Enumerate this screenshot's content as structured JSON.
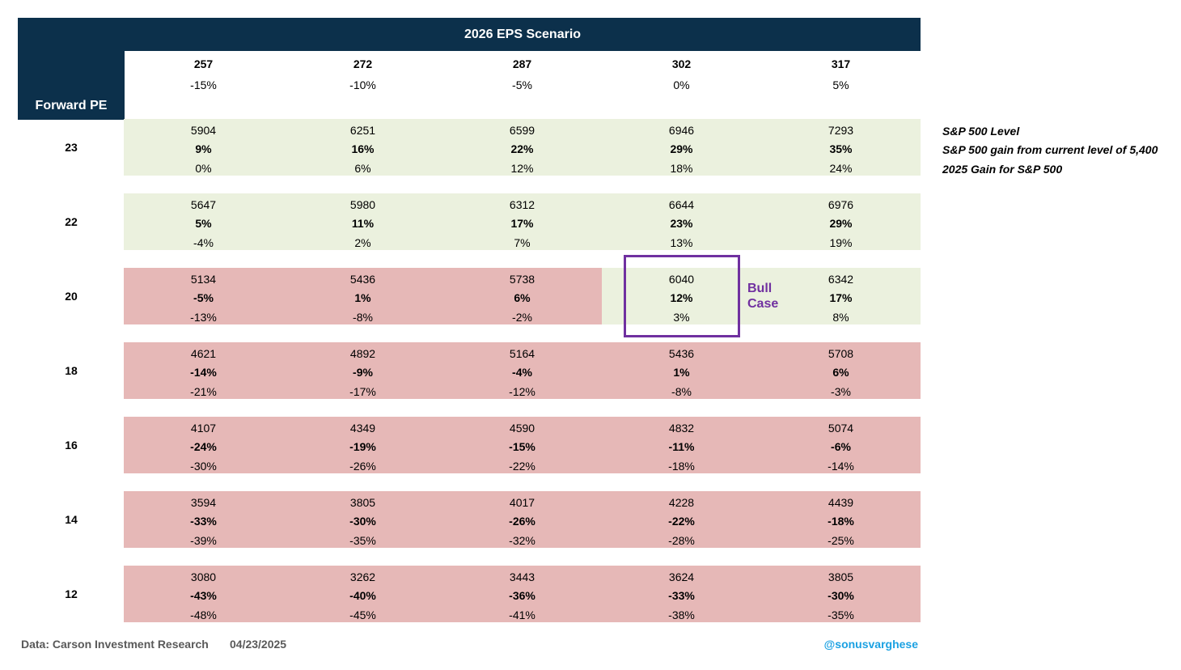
{
  "header": {
    "title": "2026 EPS Scenario",
    "row_label": "Forward PE"
  },
  "colors": {
    "header": "#0c304b",
    "positive": "#ebf1de",
    "negative": "#e6b8b7",
    "highlight": "#7030a0",
    "handle": "#1ba1e2"
  },
  "annotation": {
    "bull_line1": "Bull",
    "bull_line2": "Case"
  },
  "legend": {
    "line1": "S&P 500 Level",
    "line2": "S&P 500 gain from current level of 5,400",
    "line3": "2025 Gain for S&P 500"
  },
  "footer": {
    "source": "Data: Carson Investment Research",
    "date": "04/23/2025",
    "handle": "@sonusvarghese"
  },
  "chart_data": {
    "type": "table",
    "title": "2026 EPS Scenario",
    "ylabel": "Forward PE",
    "eps": [
      {
        "value": "257",
        "change": "-15%"
      },
      {
        "value": "272",
        "change": "-10%"
      },
      {
        "value": "287",
        "change": "-5%"
      },
      {
        "value": "302",
        "change": "0%"
      },
      {
        "value": "317",
        "change": "5%"
      }
    ],
    "rows": [
      {
        "pe": "23",
        "cells": [
          {
            "level": "5904",
            "gain": "9%",
            "gain_2025": "0%",
            "positive": true
          },
          {
            "level": "6251",
            "gain": "16%",
            "gain_2025": "6%",
            "positive": true
          },
          {
            "level": "6599",
            "gain": "22%",
            "gain_2025": "12%",
            "positive": true
          },
          {
            "level": "6946",
            "gain": "29%",
            "gain_2025": "18%",
            "positive": true
          },
          {
            "level": "7293",
            "gain": "35%",
            "gain_2025": "24%",
            "positive": true
          }
        ]
      },
      {
        "pe": "22",
        "cells": [
          {
            "level": "5647",
            "gain": "5%",
            "gain_2025": "-4%",
            "positive": true
          },
          {
            "level": "5980",
            "gain": "11%",
            "gain_2025": "2%",
            "positive": true
          },
          {
            "level": "6312",
            "gain": "17%",
            "gain_2025": "7%",
            "positive": true
          },
          {
            "level": "6644",
            "gain": "23%",
            "gain_2025": "13%",
            "positive": true
          },
          {
            "level": "6976",
            "gain": "29%",
            "gain_2025": "19%",
            "positive": true
          }
        ]
      },
      {
        "pe": "20",
        "cells": [
          {
            "level": "5134",
            "gain": "-5%",
            "gain_2025": "-13%",
            "positive": false
          },
          {
            "level": "5436",
            "gain": "1%",
            "gain_2025": "-8%",
            "positive": false
          },
          {
            "level": "5738",
            "gain": "6%",
            "gain_2025": "-2%",
            "positive": false
          },
          {
            "level": "6040",
            "gain": "12%",
            "gain_2025": "3%",
            "positive": true
          },
          {
            "level": "6342",
            "gain": "17%",
            "gain_2025": "8%",
            "positive": true
          }
        ]
      },
      {
        "pe": "18",
        "cells": [
          {
            "level": "4621",
            "gain": "-14%",
            "gain_2025": "-21%",
            "positive": false
          },
          {
            "level": "4892",
            "gain": "-9%",
            "gain_2025": "-17%",
            "positive": false
          },
          {
            "level": "5164",
            "gain": "-4%",
            "gain_2025": "-12%",
            "positive": false
          },
          {
            "level": "5436",
            "gain": "1%",
            "gain_2025": "-8%",
            "positive": false
          },
          {
            "level": "5708",
            "gain": "6%",
            "gain_2025": "-3%",
            "positive": false
          }
        ]
      },
      {
        "pe": "16",
        "cells": [
          {
            "level": "4107",
            "gain": "-24%",
            "gain_2025": "-30%",
            "positive": false
          },
          {
            "level": "4349",
            "gain": "-19%",
            "gain_2025": "-26%",
            "positive": false
          },
          {
            "level": "4590",
            "gain": "-15%",
            "gain_2025": "-22%",
            "positive": false
          },
          {
            "level": "4832",
            "gain": "-11%",
            "gain_2025": "-18%",
            "positive": false
          },
          {
            "level": "5074",
            "gain": "-6%",
            "gain_2025": "-14%",
            "positive": false
          }
        ]
      },
      {
        "pe": "14",
        "cells": [
          {
            "level": "3594",
            "gain": "-33%",
            "gain_2025": "-39%",
            "positive": false
          },
          {
            "level": "3805",
            "gain": "-30%",
            "gain_2025": "-35%",
            "positive": false
          },
          {
            "level": "4017",
            "gain": "-26%",
            "gain_2025": "-32%",
            "positive": false
          },
          {
            "level": "4228",
            "gain": "-22%",
            "gain_2025": "-28%",
            "positive": false
          },
          {
            "level": "4439",
            "gain": "-18%",
            "gain_2025": "-25%",
            "positive": false
          }
        ]
      },
      {
        "pe": "12",
        "cells": [
          {
            "level": "3080",
            "gain": "-43%",
            "gain_2025": "-48%",
            "positive": false
          },
          {
            "level": "3262",
            "gain": "-40%",
            "gain_2025": "-45%",
            "positive": false
          },
          {
            "level": "3443",
            "gain": "-36%",
            "gain_2025": "-41%",
            "positive": false
          },
          {
            "level": "3624",
            "gain": "-33%",
            "gain_2025": "-38%",
            "positive": false
          },
          {
            "level": "3805",
            "gain": "-30%",
            "gain_2025": "-35%",
            "positive": false
          }
        ]
      }
    ],
    "highlight": {
      "pe": "20",
      "eps": "302"
    }
  }
}
